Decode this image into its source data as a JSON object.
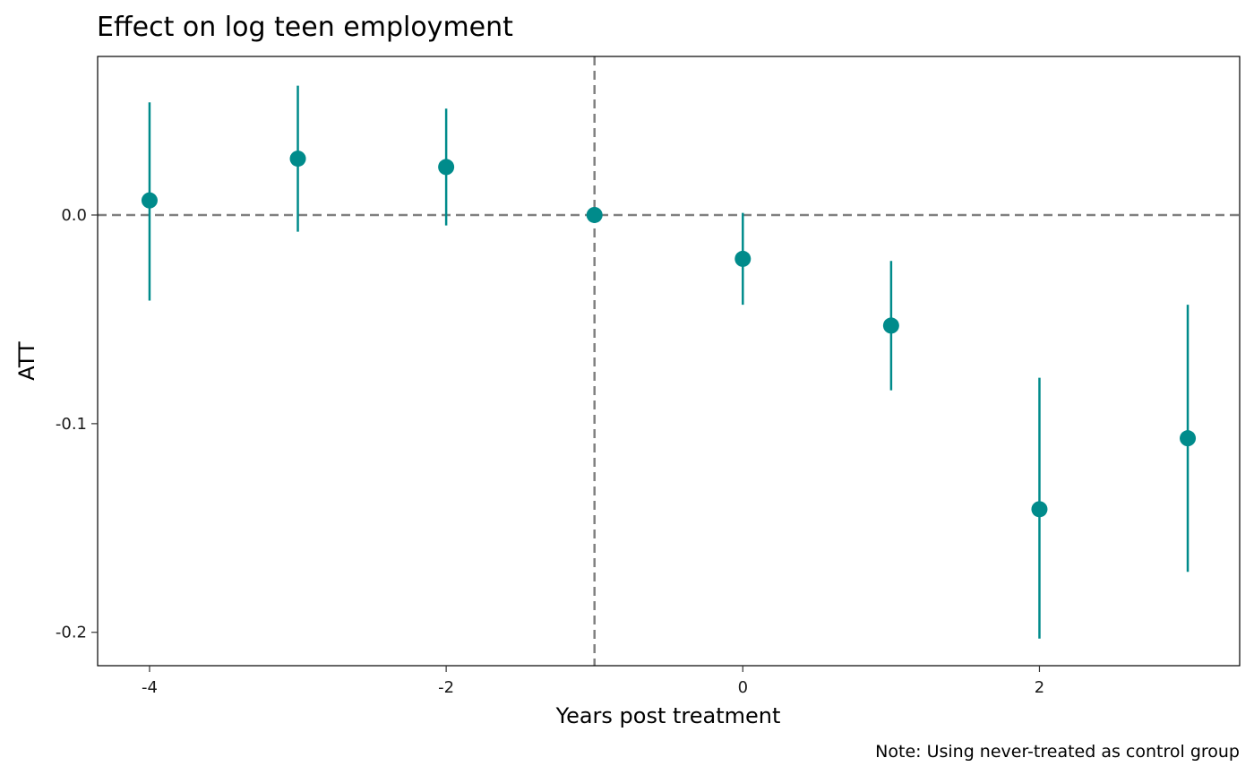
{
  "chart_data": {
    "type": "scatter",
    "title": "Effect on log teen employment",
    "xlabel": "Years post treatment",
    "ylabel": "ATT",
    "caption": "Note: Using never-treated as control group",
    "xlim": [
      -4.35,
      3.35
    ],
    "ylim": [
      -0.216,
      0.076
    ],
    "x_ticks": [
      -4,
      -2,
      0,
      2
    ],
    "x_tick_labels": [
      "-4",
      "-2",
      "0",
      "2"
    ],
    "y_ticks": [
      0.0,
      -0.1,
      -0.2
    ],
    "y_tick_labels": [
      "0.0",
      "-0.1",
      "-0.2"
    ],
    "reference_lines": {
      "horizontal_y": 0.0,
      "vertical_x": -1
    },
    "grid": false,
    "series": [
      {
        "x": [
          -4,
          -3,
          -2,
          -1,
          0,
          1,
          2,
          3
        ],
        "y": [
          0.007,
          0.027,
          0.023,
          0.0,
          -0.021,
          -0.053,
          -0.141,
          -0.107
        ],
        "lower": [
          -0.041,
          -0.008,
          -0.005,
          0.0,
          -0.043,
          -0.084,
          -0.203,
          -0.171
        ],
        "upper": [
          0.054,
          0.062,
          0.051,
          0.0,
          0.001,
          -0.022,
          -0.078,
          -0.043
        ]
      }
    ],
    "colors": {
      "points": "#008B8B",
      "reference": "#808080",
      "frame": "#000000"
    }
  }
}
